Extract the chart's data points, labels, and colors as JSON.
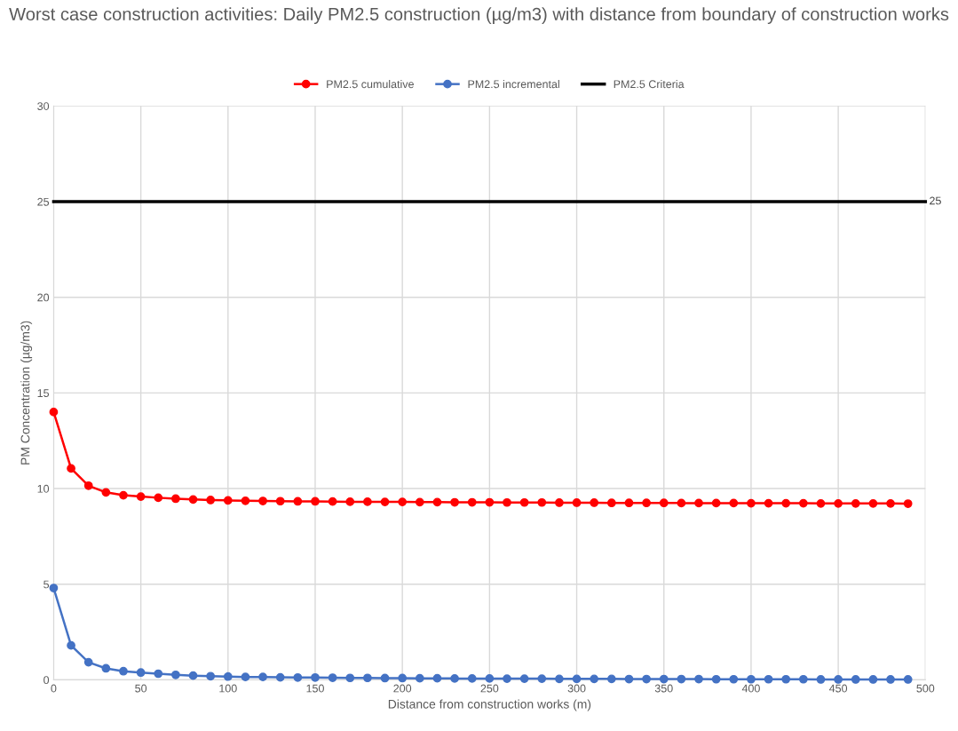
{
  "chart_data": {
    "type": "line",
    "title": "Worst case construction activities: Daily PM2.5 construction (µg/m3) with distance from boundary of construction works",
    "xlabel": "Distance from construction works (m)",
    "ylabel": "PM Concentration (µg/m3)",
    "x": [
      0,
      10,
      20,
      30,
      40,
      50,
      60,
      70,
      80,
      90,
      100,
      110,
      120,
      130,
      140,
      150,
      160,
      170,
      180,
      190,
      200,
      210,
      220,
      230,
      240,
      250,
      260,
      270,
      280,
      290,
      300,
      310,
      320,
      330,
      340,
      350,
      360,
      370,
      380,
      390,
      400,
      410,
      420,
      430,
      440,
      450,
      460,
      470,
      480,
      490
    ],
    "series": [
      {
        "name": "PM2.5 cumulative",
        "color": "#ff0000",
        "marker": "circle",
        "values": [
          14.0,
          11.05,
          10.15,
          9.8,
          9.65,
          9.58,
          9.52,
          9.47,
          9.43,
          9.4,
          9.38,
          9.36,
          9.35,
          9.34,
          9.33,
          9.33,
          9.32,
          9.31,
          9.31,
          9.3,
          9.3,
          9.29,
          9.29,
          9.28,
          9.28,
          9.28,
          9.27,
          9.27,
          9.27,
          9.26,
          9.26,
          9.26,
          9.25,
          9.25,
          9.25,
          9.25,
          9.24,
          9.24,
          9.24,
          9.24,
          9.23,
          9.23,
          9.23,
          9.23,
          9.22,
          9.22,
          9.22,
          9.22,
          9.22,
          9.21
        ]
      },
      {
        "name": "PM2.5 incremental",
        "color": "#4472c4",
        "marker": "circle",
        "values": [
          4.8,
          1.8,
          0.92,
          0.6,
          0.45,
          0.38,
          0.32,
          0.26,
          0.22,
          0.19,
          0.17,
          0.15,
          0.15,
          0.13,
          0.12,
          0.12,
          0.11,
          0.1,
          0.1,
          0.09,
          0.09,
          0.08,
          0.08,
          0.07,
          0.07,
          0.07,
          0.06,
          0.06,
          0.06,
          0.05,
          0.05,
          0.05,
          0.05,
          0.04,
          0.04,
          0.04,
          0.04,
          0.04,
          0.03,
          0.03,
          0.03,
          0.03,
          0.03,
          0.03,
          0.02,
          0.02,
          0.02,
          0.02,
          0.02,
          0.02
        ]
      },
      {
        "name": "PM2.5 Criteria",
        "color": "#000000",
        "marker": "none",
        "x": [
          0,
          500
        ],
        "values": [
          25,
          25
        ],
        "value_labels": [
          null,
          "25"
        ]
      }
    ],
    "xlim": [
      0,
      500
    ],
    "xticks": [
      0,
      50,
      100,
      150,
      200,
      250,
      300,
      350,
      400,
      450,
      500
    ],
    "ylim": [
      0,
      30
    ],
    "yticks": [
      0,
      5,
      10,
      15,
      20,
      25,
      30
    ],
    "grid": true,
    "legend": "top"
  }
}
